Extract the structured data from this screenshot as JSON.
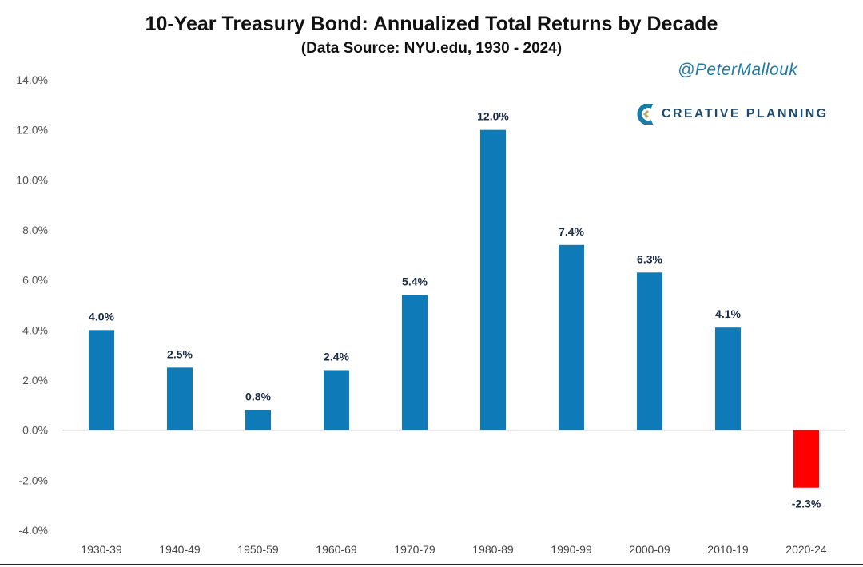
{
  "header": {
    "title": "10-Year Treasury Bond: Annualized Total Returns by Decade",
    "subtitle": "(Data Source: NYU.edu, 1930 - 2024)",
    "handle": "@PeterMallouk",
    "brand": "CREATIVE PLANNING"
  },
  "colors": {
    "positive_bar": "#0f7ab8",
    "negative_bar": "#ff0000",
    "baseline": "#c8c8c8",
    "brand_accent": "#1e7aa6"
  },
  "icons": {
    "brand_logo": "creative-planning-logo"
  },
  "chart_data": {
    "type": "bar",
    "title": "10-Year Treasury Bond: Annualized Total Returns by Decade",
    "subtitle": "(Data Source: NYU.edu, 1930 - 2024)",
    "categories": [
      "1930-39",
      "1940-49",
      "1950-59",
      "1960-69",
      "1970-79",
      "1980-89",
      "1990-99",
      "2000-09",
      "2010-19",
      "2020-24"
    ],
    "values": [
      4.0,
      2.5,
      0.8,
      2.4,
      5.4,
      12.0,
      7.4,
      6.3,
      4.1,
      -2.3
    ],
    "data_labels": [
      "4.0%",
      "2.5%",
      "0.8%",
      "2.4%",
      "5.4%",
      "12.0%",
      "7.4%",
      "6.3%",
      "4.1%",
      "-2.3%"
    ],
    "y_ticks": [
      14,
      12,
      10,
      8,
      6,
      4,
      2,
      0,
      -2,
      -4
    ],
    "y_tick_labels": [
      "14.0%",
      "12.0%",
      "10.0%",
      "8.0%",
      "6.0%",
      "4.0%",
      "2.0%",
      "0.0%",
      "-2.0%",
      "-4.0%"
    ],
    "ylim": [
      -4,
      14
    ],
    "xlabel": "",
    "ylabel": "",
    "grid": false,
    "legend": "none"
  }
}
